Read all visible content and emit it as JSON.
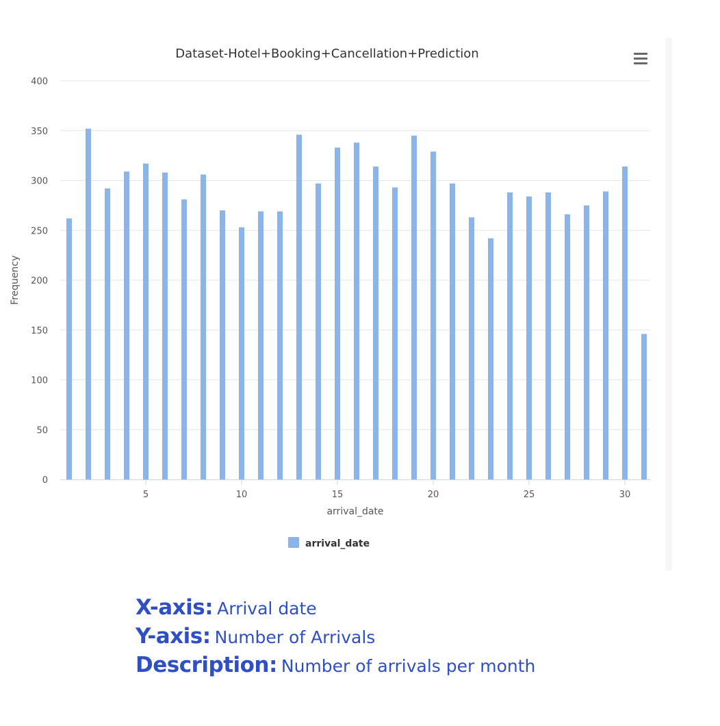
{
  "chart_data": {
    "type": "bar",
    "title": "Dataset-Hotel+Booking+Cancellation+Prediction",
    "xlabel": "arrival_date",
    "ylabel": "Frequency",
    "ylim": [
      0,
      400
    ],
    "yticks": [
      0,
      50,
      100,
      150,
      200,
      250,
      300,
      350,
      400
    ],
    "xlim": [
      1,
      31
    ],
    "xticks": [
      5,
      10,
      15,
      20,
      25,
      30
    ],
    "grid": true,
    "legend_position": "bottom-center",
    "x": [
      1,
      2,
      3,
      4,
      5,
      6,
      7,
      8,
      9,
      10,
      11,
      12,
      13,
      14,
      15,
      16,
      17,
      18,
      19,
      20,
      21,
      22,
      23,
      24,
      25,
      26,
      27,
      28,
      29,
      30,
      31
    ],
    "series": [
      {
        "name": "arrival_date",
        "color": "#8db4e8",
        "values": [
          262,
          352,
          292,
          309,
          317,
          308,
          281,
          306,
          270,
          253,
          269,
          269,
          346,
          297,
          333,
          338,
          314,
          293,
          345,
          329,
          297,
          263,
          242,
          288,
          284,
          288,
          266,
          275,
          289,
          314,
          146
        ]
      }
    ]
  },
  "caption": {
    "x_key": "X-axis:",
    "x_val": "Arrival date",
    "y_key": "Y-axis:",
    "y_val": "Number of Arrivals",
    "d_key": "Description:",
    "d_val": "Number of arrivals per month"
  },
  "colors": {
    "bar": "#8db4e8",
    "caption": "#2f4fc4",
    "grid": "#e6e6e6",
    "axis": "#ccd6eb"
  },
  "icons": {
    "menu": "hamburger-menu-icon"
  }
}
